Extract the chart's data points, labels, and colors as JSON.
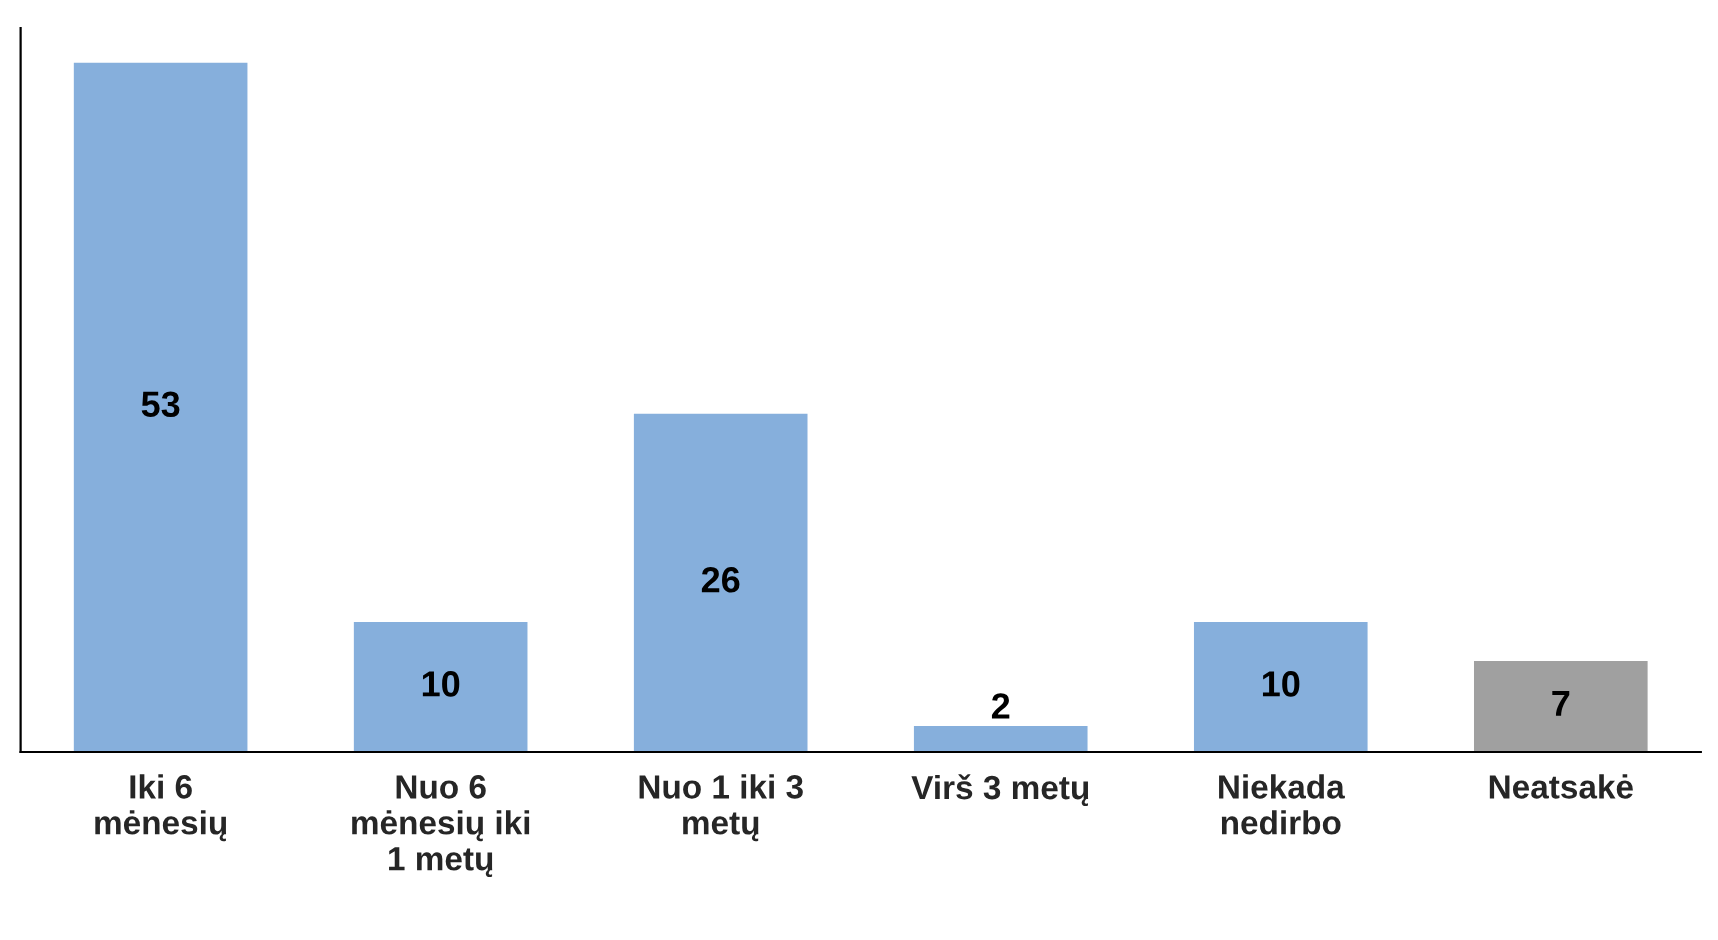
{
  "chart_data": {
    "type": "bar",
    "categories": [
      "Iki 6 mėnesių",
      "Nuo 6 mėnesių iki 1 metų",
      "Nuo 1 iki 3 metų",
      "Virš 3 metų",
      "Niekada nedirbo",
      "Neatsakė"
    ],
    "values": [
      53,
      10,
      26,
      2,
      10,
      7
    ],
    "colors": [
      "#86afdc",
      "#86afdc",
      "#86afdc",
      "#86afdc",
      "#86afdc",
      "#a0a0a0"
    ],
    "data_labels": true,
    "grid": false,
    "legend": false
  }
}
